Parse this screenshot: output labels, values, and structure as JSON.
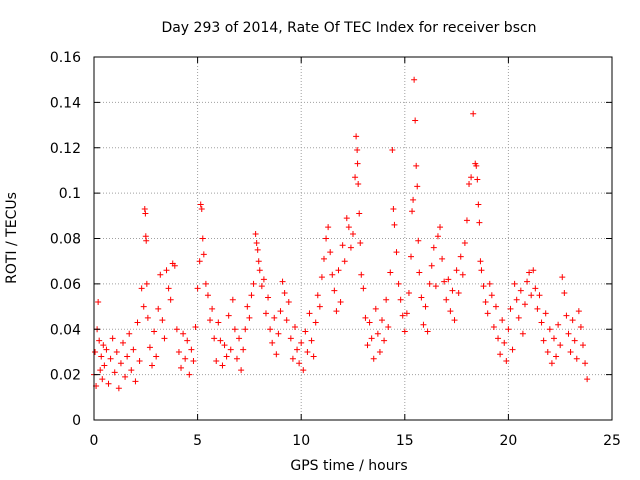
{
  "chart_data": {
    "type": "scatter",
    "title": "Day 293 of 2014, Rate Of TEC Index for receiver bscn",
    "xlabel": "GPS time / hours",
    "ylabel": "ROTI / TECUs",
    "xlim": [
      0,
      25
    ],
    "ylim": [
      0,
      0.16
    ],
    "xticks": [
      0,
      5,
      10,
      15,
      20,
      25
    ],
    "yticks": [
      0,
      0.02,
      0.04,
      0.06,
      0.08,
      0.1,
      0.12,
      0.14,
      0.16
    ],
    "xtick_labels": [
      "0",
      "5",
      "10",
      "15",
      "20",
      "25"
    ],
    "ytick_labels": [
      "0",
      "0.02",
      "0.04",
      "0.06",
      "0.08",
      "0.1",
      "0.12",
      "0.14",
      "0.16"
    ],
    "grid": true,
    "marker": "plus",
    "color": "#ff0000",
    "series": [
      {
        "points": [
          [
            0.0,
            0.02
          ],
          [
            0.05,
            0.03
          ],
          [
            0.1,
            0.015
          ],
          [
            0.15,
            0.04
          ],
          [
            0.2,
            0.052
          ],
          [
            0.25,
            0.035
          ],
          [
            0.3,
            0.022
          ],
          [
            0.35,
            0.028
          ],
          [
            0.4,
            0.018
          ],
          [
            0.45,
            0.033
          ],
          [
            0.5,
            0.024
          ],
          [
            0.6,
            0.031
          ],
          [
            0.7,
            0.016
          ],
          [
            0.8,
            0.027
          ],
          [
            0.9,
            0.036
          ],
          [
            1.0,
            0.021
          ],
          [
            1.1,
            0.03
          ],
          [
            1.2,
            0.014
          ],
          [
            1.3,
            0.025
          ],
          [
            1.4,
            0.034
          ],
          [
            1.5,
            0.019
          ],
          [
            1.6,
            0.028
          ],
          [
            1.7,
            0.038
          ],
          [
            1.8,
            0.022
          ],
          [
            1.9,
            0.031
          ],
          [
            2.0,
            0.017
          ],
          [
            2.1,
            0.043
          ],
          [
            2.2,
            0.026
          ],
          [
            2.3,
            0.058
          ],
          [
            2.4,
            0.05
          ],
          [
            2.45,
            0.093
          ],
          [
            2.48,
            0.091
          ],
          [
            2.5,
            0.081
          ],
          [
            2.52,
            0.079
          ],
          [
            2.55,
            0.06
          ],
          [
            2.6,
            0.045
          ],
          [
            2.7,
            0.032
          ],
          [
            2.8,
            0.024
          ],
          [
            2.9,
            0.039
          ],
          [
            3.0,
            0.028
          ],
          [
            3.1,
            0.049
          ],
          [
            3.2,
            0.064
          ],
          [
            3.3,
            0.044
          ],
          [
            3.4,
            0.036
          ],
          [
            3.5,
            0.066
          ],
          [
            3.6,
            0.058
          ],
          [
            3.7,
            0.053
          ],
          [
            3.8,
            0.069
          ],
          [
            3.9,
            0.068
          ],
          [
            4.0,
            0.04
          ],
          [
            4.1,
            0.03
          ],
          [
            4.2,
            0.023
          ],
          [
            4.3,
            0.038
          ],
          [
            4.4,
            0.027
          ],
          [
            4.5,
            0.035
          ],
          [
            4.6,
            0.02
          ],
          [
            4.7,
            0.031
          ],
          [
            4.8,
            0.026
          ],
          [
            4.9,
            0.041
          ],
          [
            5.0,
            0.058
          ],
          [
            5.1,
            0.07
          ],
          [
            5.15,
            0.095
          ],
          [
            5.2,
            0.093
          ],
          [
            5.25,
            0.08
          ],
          [
            5.3,
            0.073
          ],
          [
            5.4,
            0.06
          ],
          [
            5.5,
            0.055
          ],
          [
            5.6,
            0.044
          ],
          [
            5.7,
            0.049
          ],
          [
            5.8,
            0.036
          ],
          [
            5.9,
            0.026
          ],
          [
            6.0,
            0.043
          ],
          [
            6.1,
            0.035
          ],
          [
            6.2,
            0.024
          ],
          [
            6.3,
            0.033
          ],
          [
            6.4,
            0.028
          ],
          [
            6.5,
            0.046
          ],
          [
            6.6,
            0.031
          ],
          [
            6.7,
            0.053
          ],
          [
            6.8,
            0.04
          ],
          [
            6.9,
            0.027
          ],
          [
            7.0,
            0.036
          ],
          [
            7.1,
            0.022
          ],
          [
            7.2,
            0.031
          ],
          [
            7.3,
            0.04
          ],
          [
            7.4,
            0.05
          ],
          [
            7.5,
            0.045
          ],
          [
            7.6,
            0.055
          ],
          [
            7.7,
            0.06
          ],
          [
            7.8,
            0.082
          ],
          [
            7.85,
            0.078
          ],
          [
            7.9,
            0.075
          ],
          [
            7.95,
            0.07
          ],
          [
            8.0,
            0.066
          ],
          [
            8.1,
            0.059
          ],
          [
            8.2,
            0.062
          ],
          [
            8.3,
            0.047
          ],
          [
            8.4,
            0.054
          ],
          [
            8.5,
            0.04
          ],
          [
            8.6,
            0.034
          ],
          [
            8.7,
            0.045
          ],
          [
            8.8,
            0.029
          ],
          [
            8.9,
            0.038
          ],
          [
            9.0,
            0.048
          ],
          [
            9.1,
            0.061
          ],
          [
            9.2,
            0.056
          ],
          [
            9.3,
            0.044
          ],
          [
            9.4,
            0.052
          ],
          [
            9.5,
            0.036
          ],
          [
            9.6,
            0.027
          ],
          [
            9.7,
            0.041
          ],
          [
            9.8,
            0.031
          ],
          [
            9.9,
            0.025
          ],
          [
            10.0,
            0.034
          ],
          [
            10.1,
            0.022
          ],
          [
            10.2,
            0.039
          ],
          [
            10.3,
            0.03
          ],
          [
            10.4,
            0.047
          ],
          [
            10.5,
            0.035
          ],
          [
            10.6,
            0.028
          ],
          [
            10.7,
            0.043
          ],
          [
            10.8,
            0.055
          ],
          [
            10.9,
            0.05
          ],
          [
            11.0,
            0.063
          ],
          [
            11.1,
            0.071
          ],
          [
            11.2,
            0.08
          ],
          [
            11.3,
            0.085
          ],
          [
            11.4,
            0.074
          ],
          [
            11.5,
            0.064
          ],
          [
            11.6,
            0.057
          ],
          [
            11.7,
            0.048
          ],
          [
            11.8,
            0.066
          ],
          [
            11.9,
            0.052
          ],
          [
            12.0,
            0.077
          ],
          [
            12.1,
            0.07
          ],
          [
            12.2,
            0.089
          ],
          [
            12.3,
            0.085
          ],
          [
            12.4,
            0.076
          ],
          [
            12.5,
            0.082
          ],
          [
            12.6,
            0.107
          ],
          [
            12.65,
            0.125
          ],
          [
            12.7,
            0.119
          ],
          [
            12.72,
            0.113
          ],
          [
            12.75,
            0.104
          ],
          [
            12.8,
            0.091
          ],
          [
            12.85,
            0.078
          ],
          [
            12.9,
            0.064
          ],
          [
            13.0,
            0.058
          ],
          [
            13.1,
            0.045
          ],
          [
            13.2,
            0.033
          ],
          [
            13.3,
            0.043
          ],
          [
            13.4,
            0.036
          ],
          [
            13.5,
            0.027
          ],
          [
            13.6,
            0.049
          ],
          [
            13.7,
            0.038
          ],
          [
            13.8,
            0.03
          ],
          [
            13.9,
            0.044
          ],
          [
            14.0,
            0.035
          ],
          [
            14.1,
            0.053
          ],
          [
            14.2,
            0.041
          ],
          [
            14.3,
            0.065
          ],
          [
            14.4,
            0.119
          ],
          [
            14.45,
            0.093
          ],
          [
            14.5,
            0.086
          ],
          [
            14.6,
            0.074
          ],
          [
            14.7,
            0.06
          ],
          [
            14.8,
            0.053
          ],
          [
            14.9,
            0.046
          ],
          [
            15.0,
            0.039
          ],
          [
            15.1,
            0.047
          ],
          [
            15.2,
            0.056
          ],
          [
            15.3,
            0.072
          ],
          [
            15.35,
            0.092
          ],
          [
            15.4,
            0.097
          ],
          [
            15.45,
            0.15
          ],
          [
            15.5,
            0.132
          ],
          [
            15.55,
            0.112
          ],
          [
            15.6,
            0.103
          ],
          [
            15.65,
            0.079
          ],
          [
            15.7,
            0.065
          ],
          [
            15.8,
            0.054
          ],
          [
            15.9,
            0.042
          ],
          [
            16.0,
            0.05
          ],
          [
            16.1,
            0.039
          ],
          [
            16.2,
            0.06
          ],
          [
            16.3,
            0.068
          ],
          [
            16.4,
            0.076
          ],
          [
            16.5,
            0.059
          ],
          [
            16.6,
            0.081
          ],
          [
            16.7,
            0.085
          ],
          [
            16.8,
            0.071
          ],
          [
            16.9,
            0.061
          ],
          [
            17.0,
            0.053
          ],
          [
            17.1,
            0.062
          ],
          [
            17.2,
            0.048
          ],
          [
            17.3,
            0.057
          ],
          [
            17.4,
            0.044
          ],
          [
            17.5,
            0.066
          ],
          [
            17.6,
            0.056
          ],
          [
            17.7,
            0.072
          ],
          [
            17.8,
            0.064
          ],
          [
            17.9,
            0.078
          ],
          [
            18.0,
            0.088
          ],
          [
            18.1,
            0.104
          ],
          [
            18.2,
            0.107
          ],
          [
            18.3,
            0.135
          ],
          [
            18.4,
            0.113
          ],
          [
            18.45,
            0.112
          ],
          [
            18.5,
            0.106
          ],
          [
            18.55,
            0.095
          ],
          [
            18.6,
            0.087
          ],
          [
            18.65,
            0.07
          ],
          [
            18.7,
            0.066
          ],
          [
            18.8,
            0.059
          ],
          [
            18.9,
            0.052
          ],
          [
            19.0,
            0.047
          ],
          [
            19.1,
            0.06
          ],
          [
            19.2,
            0.055
          ],
          [
            19.3,
            0.041
          ],
          [
            19.4,
            0.05
          ],
          [
            19.5,
            0.036
          ],
          [
            19.6,
            0.029
          ],
          [
            19.7,
            0.044
          ],
          [
            19.8,
            0.034
          ],
          [
            19.9,
            0.026
          ],
          [
            20.0,
            0.04
          ],
          [
            20.1,
            0.049
          ],
          [
            20.2,
            0.031
          ],
          [
            20.3,
            0.06
          ],
          [
            20.4,
            0.053
          ],
          [
            20.5,
            0.045
          ],
          [
            20.6,
            0.057
          ],
          [
            20.7,
            0.038
          ],
          [
            20.8,
            0.051
          ],
          [
            20.9,
            0.061
          ],
          [
            21.0,
            0.065
          ],
          [
            21.1,
            0.055
          ],
          [
            21.2,
            0.066
          ],
          [
            21.3,
            0.058
          ],
          [
            21.4,
            0.049
          ],
          [
            21.5,
            0.055
          ],
          [
            21.6,
            0.043
          ],
          [
            21.7,
            0.035
          ],
          [
            21.8,
            0.047
          ],
          [
            21.9,
            0.03
          ],
          [
            22.0,
            0.04
          ],
          [
            22.1,
            0.025
          ],
          [
            22.2,
            0.036
          ],
          [
            22.3,
            0.028
          ],
          [
            22.4,
            0.042
          ],
          [
            22.5,
            0.033
          ],
          [
            22.6,
            0.063
          ],
          [
            22.7,
            0.056
          ],
          [
            22.8,
            0.046
          ],
          [
            22.9,
            0.038
          ],
          [
            23.0,
            0.03
          ],
          [
            23.1,
            0.044
          ],
          [
            23.2,
            0.035
          ],
          [
            23.3,
            0.027
          ],
          [
            23.4,
            0.048
          ],
          [
            23.5,
            0.041
          ],
          [
            23.6,
            0.033
          ],
          [
            23.7,
            0.025
          ],
          [
            23.8,
            0.018
          ]
        ]
      }
    ]
  }
}
